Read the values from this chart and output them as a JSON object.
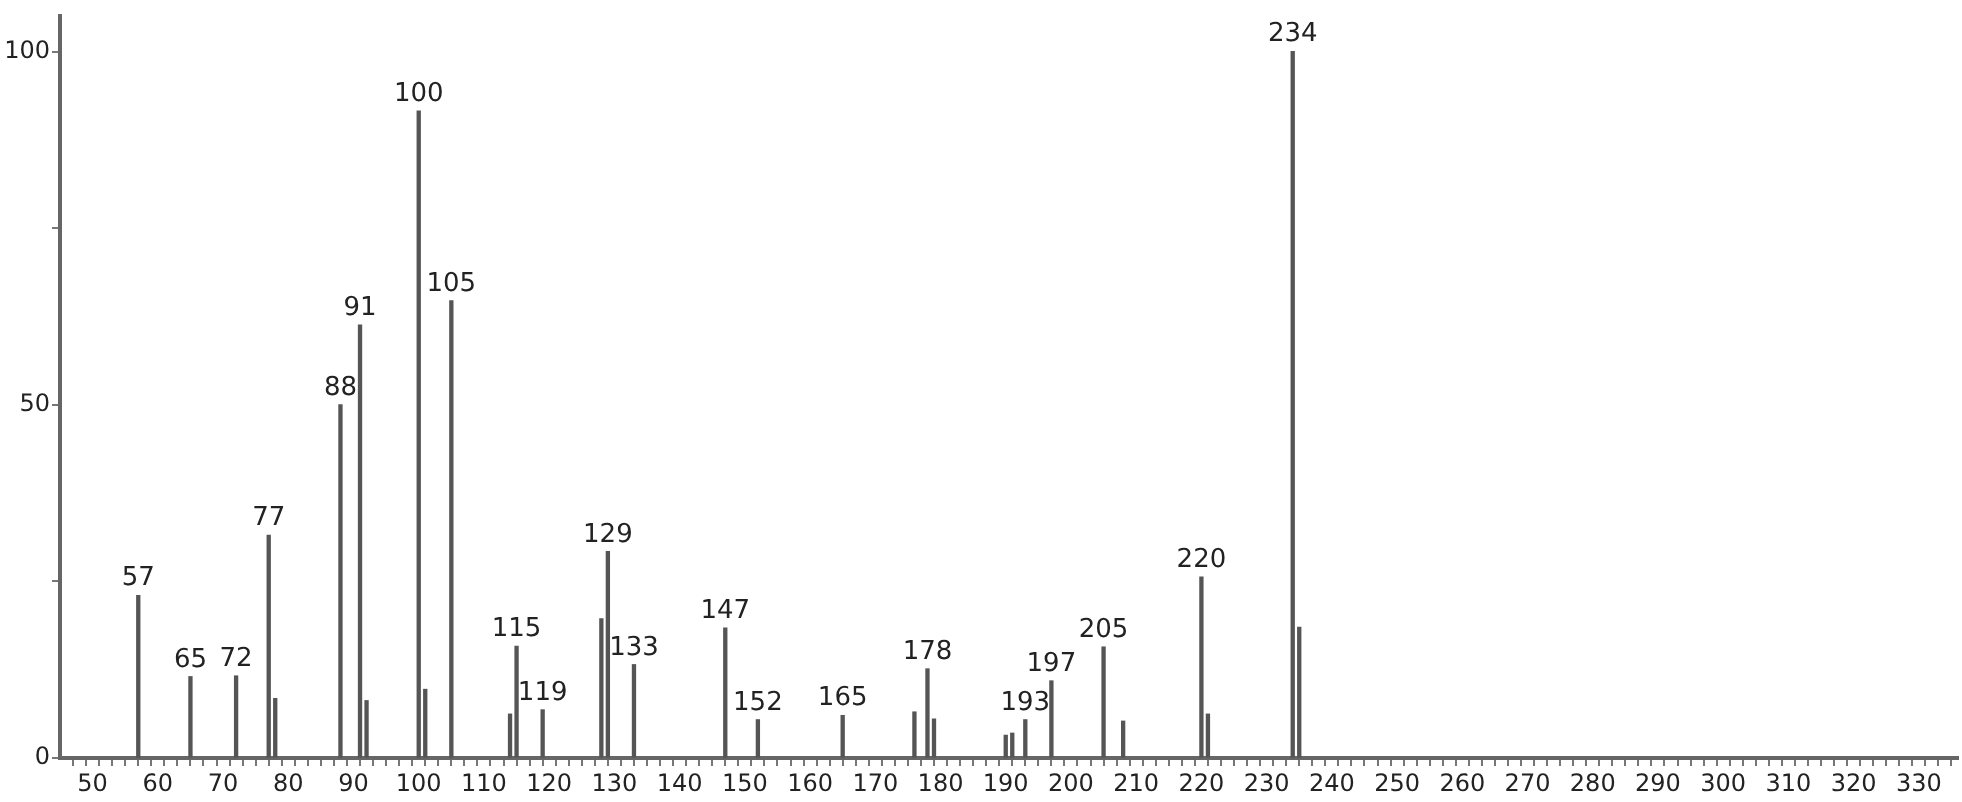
{
  "chart_data": {
    "type": "bar",
    "x": [
      57,
      65,
      72,
      77,
      78,
      88,
      91,
      92,
      100,
      101,
      105,
      114,
      115,
      119,
      128,
      129,
      133,
      147,
      152,
      165,
      176,
      178,
      179,
      190,
      191,
      193,
      197,
      205,
      208,
      220,
      221,
      234,
      235
    ],
    "values": [
      23,
      11.5,
      11.6,
      31.5,
      8.4,
      50,
      61.3,
      8.1,
      91.6,
      9.7,
      64.7,
      6.2,
      15.8,
      6.8,
      19.7,
      29.2,
      13.2,
      18.4,
      5.4,
      6,
      6.5,
      12.6,
      5.5,
      3.2,
      3.5,
      5.4,
      10.9,
      15.7,
      5.2,
      25.6,
      6.2,
      100,
      18.5
    ],
    "annotations": [
      {
        "text": "57",
        "x": 57,
        "y": 23
      },
      {
        "text": "65",
        "x": 65,
        "y": 11.5
      },
      {
        "text": "72",
        "x": 72,
        "y": 11.6
      },
      {
        "text": "77",
        "x": 77,
        "y": 31.5
      },
      {
        "text": "88",
        "x": 88,
        "y": 50
      },
      {
        "text": "91",
        "x": 91,
        "y": 61.3
      },
      {
        "text": "100",
        "x": 100,
        "y": 91.6
      },
      {
        "text": "105",
        "x": 105,
        "y": 64.7
      },
      {
        "text": "115",
        "x": 115,
        "y": 15.8
      },
      {
        "text": "119",
        "x": 119,
        "y": 6.8
      },
      {
        "text": "129",
        "x": 129,
        "y": 29.2
      },
      {
        "text": "133",
        "x": 133,
        "y": 13.2
      },
      {
        "text": "147",
        "x": 147,
        "y": 18.4
      },
      {
        "text": "152",
        "x": 152,
        "y": 5.4
      },
      {
        "text": "165",
        "x": 165,
        "y": 6
      },
      {
        "text": "178",
        "x": 178,
        "y": 12.6
      },
      {
        "text": "193",
        "x": 193,
        "y": 5.4
      },
      {
        "text": "197",
        "x": 197,
        "y": 10.9
      },
      {
        "text": "205",
        "x": 205,
        "y": 15.7
      },
      {
        "text": "220",
        "x": 220,
        "y": 25.6
      },
      {
        "text": "234",
        "x": 234,
        "y": 100
      }
    ],
    "color": "#555555",
    "xlim": [
      45,
      336
    ],
    "xticks": [
      {
        "value": 48,
        "label": null
      },
      50,
      {
        "value": 52,
        "label": null
      },
      {
        "value": 54,
        "label": null
      },
      {
        "value": 56,
        "label": null
      },
      {
        "value": 58,
        "label": null
      },
      60,
      {
        "value": 62,
        "label": null
      },
      {
        "value": 64,
        "label": null
      },
      {
        "value": 66,
        "label": null
      },
      {
        "value": 68,
        "label": null
      },
      70,
      {
        "value": 72,
        "label": null
      },
      {
        "value": 74,
        "label": null
      },
      {
        "value": 76,
        "label": null
      },
      {
        "value": 78,
        "label": null
      },
      80,
      {
        "value": 82,
        "label": null
      },
      {
        "value": 84,
        "label": null
      },
      {
        "value": 86,
        "label": null
      },
      {
        "value": 88,
        "label": null
      },
      90,
      {
        "value": 92,
        "label": null
      },
      {
        "value": 94,
        "label": null
      },
      {
        "value": 96,
        "label": null
      },
      {
        "value": 98,
        "label": null
      },
      100,
      {
        "value": 102,
        "label": null
      },
      {
        "value": 104,
        "label": null
      },
      {
        "value": 106,
        "label": null
      },
      {
        "value": 108,
        "label": null
      },
      110,
      {
        "value": 112,
        "label": null
      },
      {
        "value": 114,
        "label": null
      },
      {
        "value": 116,
        "label": null
      },
      {
        "value": 118,
        "label": null
      },
      120,
      {
        "value": 122,
        "label": null
      },
      {
        "value": 124,
        "label": null
      },
      {
        "value": 126,
        "label": null
      },
      {
        "value": 128,
        "label": null
      },
      130,
      {
        "value": 132,
        "label": null
      },
      {
        "value": 134,
        "label": null
      },
      {
        "value": 136,
        "label": null
      },
      {
        "value": 138,
        "label": null
      },
      140,
      {
        "value": 142,
        "label": null
      },
      {
        "value": 144,
        "label": null
      },
      {
        "value": 146,
        "label": null
      },
      {
        "value": 148,
        "label": null
      },
      150,
      {
        "value": 152,
        "label": null
      },
      {
        "value": 154,
        "label": null
      },
      {
        "value": 156,
        "label": null
      },
      {
        "value": 158,
        "label": null
      },
      160,
      {
        "value": 162,
        "label": null
      },
      {
        "value": 164,
        "label": null
      },
      {
        "value": 166,
        "label": null
      },
      {
        "value": 168,
        "label": null
      },
      170,
      {
        "value": 172,
        "label": null
      },
      {
        "value": 174,
        "label": null
      },
      {
        "value": 176,
        "label": null
      },
      {
        "value": 178,
        "label": null
      },
      180,
      {
        "value": 182,
        "label": null
      },
      {
        "value": 184,
        "label": null
      },
      {
        "value": 186,
        "label": null
      },
      {
        "value": 188,
        "label": null
      },
      190,
      {
        "value": 192,
        "label": null
      },
      {
        "value": 194,
        "label": null
      },
      {
        "value": 196,
        "label": null
      },
      {
        "value": 198,
        "label": null
      },
      200,
      {
        "value": 202,
        "label": null
      },
      {
        "value": 204,
        "label": null
      },
      {
        "value": 206,
        "label": null
      },
      {
        "value": 208,
        "label": null
      },
      210,
      {
        "value": 212,
        "label": null
      },
      {
        "value": 214,
        "label": null
      },
      {
        "value": 216,
        "label": null
      },
      {
        "value": 218,
        "label": null
      },
      220,
      {
        "value": 222,
        "label": null
      },
      {
        "value": 224,
        "label": null
      },
      {
        "value": 226,
        "label": null
      },
      {
        "value": 228,
        "label": null
      },
      230,
      {
        "value": 232,
        "label": null
      },
      {
        "value": 234,
        "label": null
      },
      {
        "value": 236,
        "label": null
      },
      {
        "value": 238,
        "label": null
      },
      240,
      {
        "value": 242,
        "label": null
      },
      {
        "value": 244,
        "label": null
      },
      {
        "value": 246,
        "label": null
      },
      {
        "value": 248,
        "label": null
      },
      250,
      {
        "value": 252,
        "label": null
      },
      {
        "value": 254,
        "label": null
      },
      {
        "value": 256,
        "label": null
      },
      {
        "value": 258,
        "label": null
      },
      260,
      {
        "value": 262,
        "label": null
      },
      {
        "value": 264,
        "label": null
      },
      {
        "value": 266,
        "label": null
      },
      {
        "value": 268,
        "label": null
      },
      270,
      {
        "value": 272,
        "label": null
      },
      {
        "value": 274,
        "label": null
      },
      {
        "value": 276,
        "label": null
      },
      {
        "value": 278,
        "label": null
      },
      280,
      {
        "value": 282,
        "label": null
      },
      {
        "value": 284,
        "label": null
      },
      {
        "value": 286,
        "label": null
      },
      {
        "value": 288,
        "label": null
      },
      290,
      {
        "value": 292,
        "label": null
      },
      {
        "value": 294,
        "label": null
      },
      {
        "value": 296,
        "label": null
      },
      {
        "value": 298,
        "label": null
      },
      300,
      {
        "value": 302,
        "label": null
      },
      {
        "value": 304,
        "label": null
      },
      {
        "value": 306,
        "label": null
      },
      {
        "value": 308,
        "label": null
      },
      310,
      {
        "value": 312,
        "label": null
      },
      {
        "value": 314,
        "label": null
      },
      {
        "value": 316,
        "label": null
      },
      {
        "value": 318,
        "label": null
      },
      320,
      {
        "value": 322,
        "label": null
      },
      {
        "value": 324,
        "label": null
      },
      {
        "value": 326,
        "label": null
      },
      {
        "value": 328,
        "label": null
      },
      330,
      {
        "value": 332,
        "label": null
      },
      {
        "value": 334,
        "label": null
      }
    ],
    "ylim": [
      0,
      105
    ],
    "yticks": [
      0,
      {
        "value": 25,
        "label": null
      },
      50,
      {
        "value": 75,
        "label": null
      },
      100
    ],
    "grid": false,
    "legend": false
  }
}
